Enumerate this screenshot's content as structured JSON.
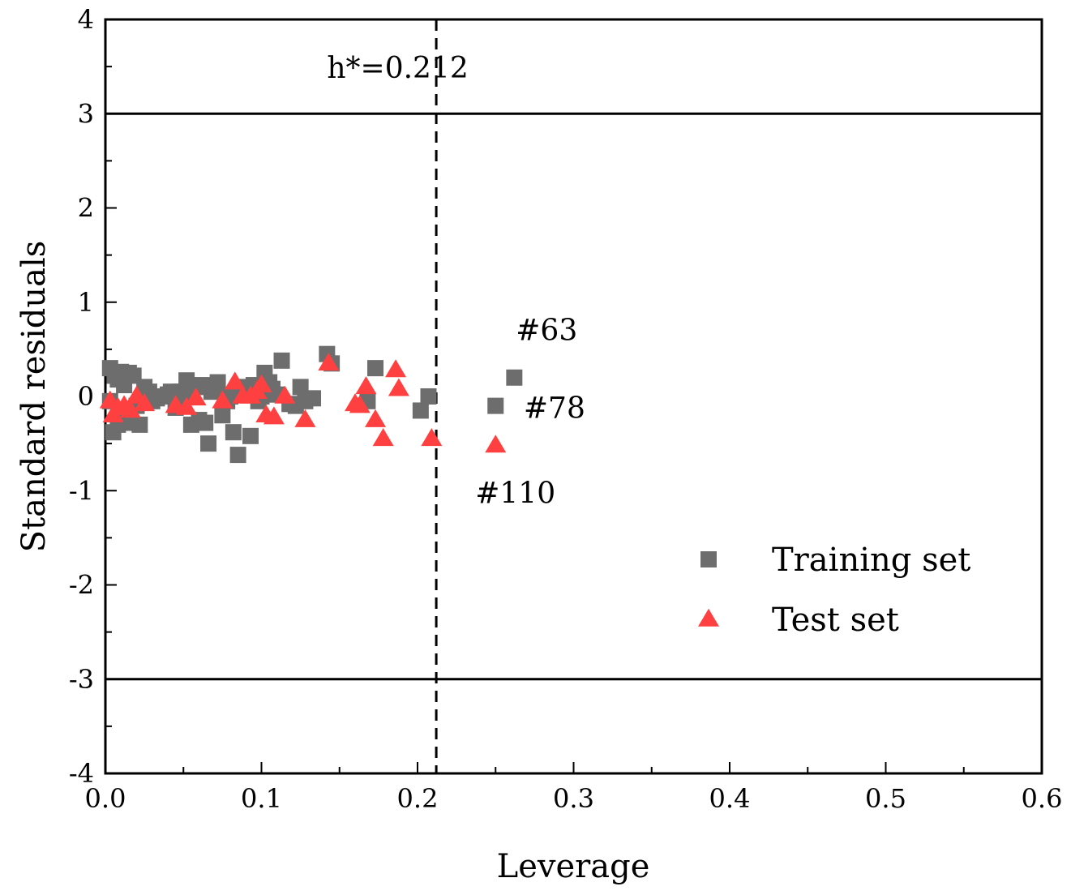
{
  "chart_data": {
    "type": "scatter",
    "title": "",
    "xlabel": "Leverage",
    "ylabel": "Standard residuals",
    "xlim": [
      0.0,
      0.6
    ],
    "ylim": [
      -4,
      4
    ],
    "x_ticks": [
      0.0,
      0.1,
      0.2,
      0.3,
      0.4,
      0.5,
      0.6
    ],
    "x_tick_labels": [
      "0.0",
      "0.1",
      "0.2",
      "0.3",
      "0.4",
      "0.5",
      "0.6"
    ],
    "y_ticks": [
      -4,
      -3,
      -2,
      -1,
      0,
      1,
      2,
      3,
      4
    ],
    "y_tick_labels": [
      "-4",
      "-3",
      "-2",
      "-1",
      "0",
      "1",
      "2",
      "3",
      "4"
    ],
    "grid": false,
    "legend_position": "bottom-right",
    "reference_lines": [
      {
        "orientation": "horizontal",
        "value": 3,
        "style": "solid"
      },
      {
        "orientation": "horizontal",
        "value": -3,
        "style": "solid"
      },
      {
        "orientation": "vertical",
        "value": 0.212,
        "style": "dashed"
      }
    ],
    "annotations": [
      {
        "text": "h*=0.212",
        "x": 0.142,
        "y": 3.38
      },
      {
        "text": "#63",
        "x": 0.263,
        "y": 0.6
      },
      {
        "text": "#78",
        "x": 0.268,
        "y": -0.23
      },
      {
        "text": "#110",
        "x": 0.237,
        "y": -1.13
      }
    ],
    "series": [
      {
        "name": "Training set",
        "marker": "square",
        "color": "#6d6d6d",
        "points": [
          [
            0.003,
            0.3
          ],
          [
            0.006,
            0.22
          ],
          [
            0.008,
            0.18
          ],
          [
            0.01,
            0.26
          ],
          [
            0.012,
            0.12
          ],
          [
            0.015,
            0.25
          ],
          [
            0.018,
            0.22
          ],
          [
            0.003,
            -0.05
          ],
          [
            0.005,
            -0.38
          ],
          [
            0.008,
            -0.3
          ],
          [
            0.012,
            -0.2
          ],
          [
            0.015,
            -0.28
          ],
          [
            0.02,
            -0.1
          ],
          [
            0.022,
            -0.3
          ],
          [
            0.025,
            0.1
          ],
          [
            0.028,
            0.05
          ],
          [
            0.03,
            -0.05
          ],
          [
            0.033,
            -0.02
          ],
          [
            0.037,
            0.0
          ],
          [
            0.04,
            0.02
          ],
          [
            0.042,
            0.05
          ],
          [
            0.045,
            -0.12
          ],
          [
            0.048,
            0.05
          ],
          [
            0.05,
            -0.05
          ],
          [
            0.052,
            0.17
          ],
          [
            0.055,
            -0.3
          ],
          [
            0.058,
            0.1
          ],
          [
            0.06,
            -0.25
          ],
          [
            0.062,
            0.12
          ],
          [
            0.064,
            -0.28
          ],
          [
            0.066,
            -0.5
          ],
          [
            0.068,
            0.05
          ],
          [
            0.07,
            0.1
          ],
          [
            0.072,
            0.15
          ],
          [
            0.075,
            -0.2
          ],
          [
            0.078,
            -0.05
          ],
          [
            0.08,
            0.0
          ],
          [
            0.082,
            -0.38
          ],
          [
            0.085,
            -0.62
          ],
          [
            0.088,
            0.05
          ],
          [
            0.09,
            0.1
          ],
          [
            0.093,
            -0.42
          ],
          [
            0.095,
            0.12
          ],
          [
            0.098,
            -0.05
          ],
          [
            0.1,
            0.0
          ],
          [
            0.102,
            0.25
          ],
          [
            0.105,
            0.15
          ],
          [
            0.107,
            0.08
          ],
          [
            0.11,
            0.02
          ],
          [
            0.113,
            0.38
          ],
          [
            0.118,
            -0.08
          ],
          [
            0.122,
            -0.1
          ],
          [
            0.125,
            0.1
          ],
          [
            0.128,
            -0.05
          ],
          [
            0.133,
            -0.02
          ],
          [
            0.142,
            0.45
          ],
          [
            0.145,
            0.35
          ],
          [
            0.168,
            -0.05
          ],
          [
            0.173,
            0.3
          ],
          [
            0.202,
            -0.15
          ],
          [
            0.207,
            0.0
          ],
          [
            0.25,
            -0.1
          ],
          [
            0.262,
            0.2
          ]
        ]
      },
      {
        "name": "Test set",
        "marker": "triangle",
        "color": "#ff4040",
        "points": [
          [
            0.003,
            -0.05
          ],
          [
            0.005,
            -0.2
          ],
          [
            0.008,
            -0.12
          ],
          [
            0.012,
            -0.1
          ],
          [
            0.016,
            -0.15
          ],
          [
            0.02,
            0.0
          ],
          [
            0.025,
            -0.08
          ],
          [
            0.045,
            -0.1
          ],
          [
            0.052,
            -0.12
          ],
          [
            0.058,
            -0.02
          ],
          [
            0.075,
            -0.05
          ],
          [
            0.083,
            0.15
          ],
          [
            0.088,
            0.0
          ],
          [
            0.093,
            0.0
          ],
          [
            0.097,
            0.05
          ],
          [
            0.1,
            0.12
          ],
          [
            0.103,
            -0.2
          ],
          [
            0.108,
            -0.22
          ],
          [
            0.115,
            0.0
          ],
          [
            0.128,
            -0.25
          ],
          [
            0.143,
            0.35
          ],
          [
            0.16,
            -0.08
          ],
          [
            0.163,
            -0.1
          ],
          [
            0.167,
            0.1
          ],
          [
            0.173,
            -0.25
          ],
          [
            0.178,
            -0.45
          ],
          [
            0.186,
            0.28
          ],
          [
            0.188,
            0.08
          ],
          [
            0.209,
            -0.45
          ],
          [
            0.25,
            -0.52
          ]
        ]
      }
    ]
  }
}
